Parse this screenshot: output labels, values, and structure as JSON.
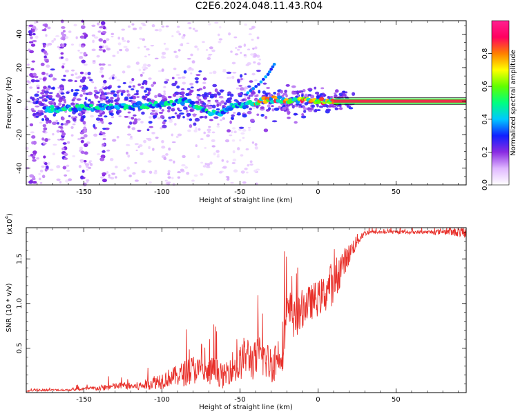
{
  "figure_title": "C2E6.2024.048.11.43.R04",
  "colors": {
    "snr_line": "#e8302a",
    "frame": "#000000",
    "signal_band": "#e8304a"
  },
  "chart_data": [
    {
      "type": "heatmap",
      "title": "",
      "xlabel": "Height of straight line (km)",
      "ylabel": "Frequency (Hz)",
      "xlim": [
        -187,
        95
      ],
      "ylim": [
        -50,
        48
      ],
      "xticks": [
        -150,
        -100,
        -50,
        0,
        50
      ],
      "xtick_labels": [
        "-150",
        "-100",
        "-50",
        "0",
        "50"
      ],
      "yticks": [
        -40,
        -20,
        0,
        20,
        40
      ],
      "ytick_labels": [
        "-40",
        "-20",
        "0",
        "20",
        "40"
      ],
      "colorbar": {
        "label": "Normalized spectral amplitude",
        "range": [
          0,
          1
        ],
        "ticks": [
          0.0,
          0.2,
          0.4,
          0.6,
          0.8
        ],
        "tick_labels": [
          "0.0",
          "0.2",
          "0.4",
          "0.6",
          "0.8"
        ],
        "colormap": [
          "#ffffff",
          "#e0b8ff",
          "#8a2be2",
          "#1020ff",
          "#00c8ff",
          "#00ff80",
          "#60ff00",
          "#ffff00",
          "#ff8000",
          "#ff0060",
          "#ff2090"
        ]
      },
      "features": {
        "steady_tone": {
          "x_range": [
            10,
            95
          ],
          "frequency": 0,
          "amplitude": 0.85
        },
        "drifting_band": [
          {
            "x": -175,
            "f": -5
          },
          {
            "x": -150,
            "f": -4
          },
          {
            "x": -125,
            "f": -3
          },
          {
            "x": -100,
            "f": -2
          },
          {
            "x": -85,
            "f": 0
          },
          {
            "x": -75,
            "f": -5
          },
          {
            "x": -65,
            "f": -8
          },
          {
            "x": -55,
            "f": -3
          },
          {
            "x": -45,
            "f": -2
          },
          {
            "x": -35,
            "f": 1
          },
          {
            "x": -25,
            "f": 1
          },
          {
            "x": -10,
            "f": 0
          },
          {
            "x": 5,
            "f": 0
          },
          {
            "x": 15,
            "f": 0
          }
        ],
        "rising_branch": [
          {
            "x": -45,
            "f": 5
          },
          {
            "x": -38,
            "f": 10
          },
          {
            "x": -32,
            "f": 16
          },
          {
            "x": -28,
            "f": 22
          }
        ],
        "noise_columns_x": [
          -183,
          -175,
          -163,
          -150,
          -138
        ]
      }
    },
    {
      "type": "line",
      "title": "",
      "xlabel": "Height of straight line (km)",
      "ylabel": "SNR (10 * v/v)",
      "y_multiplier": "(x10",
      "y_multiplier_exp": "4",
      "y_multiplier_close": ")",
      "xlim": [
        -187,
        95
      ],
      "ylim": [
        0,
        1.85
      ],
      "xticks": [
        -150,
        -100,
        -50,
        0,
        50
      ],
      "xtick_labels": [
        "-150",
        "-100",
        "-50",
        "0",
        "50"
      ],
      "yticks": [
        0.5,
        1.0,
        1.5
      ],
      "ytick_labels": [
        "0.5",
        "1.0",
        "1.5"
      ],
      "series": [
        {
          "x": [
            -187,
            -170,
            -160,
            -150,
            -140,
            -135,
            -130,
            -125,
            -120,
            -115,
            -110,
            -105,
            -100,
            -95,
            -90,
            -85,
            -80,
            -78,
            -75,
            -72,
            -70,
            -68,
            -65,
            -62,
            -60,
            -58,
            -55,
            -52,
            -50,
            -48,
            -45,
            -42,
            -40,
            -38,
            -35,
            -32,
            -30,
            -28,
            -25,
            -22,
            -20,
            -18,
            -15,
            -12,
            -10,
            -8,
            -5,
            -2,
            0,
            3,
            5,
            8,
            10,
            12,
            15,
            18,
            20,
            22,
            25,
            28,
            30,
            35,
            40,
            45,
            50,
            55,
            60,
            65,
            70,
            75,
            80,
            85,
            90,
            95
          ],
          "base": [
            0.02,
            0.03,
            0.03,
            0.04,
            0.05,
            0.06,
            0.07,
            0.08,
            0.07,
            0.07,
            0.09,
            0.12,
            0.14,
            0.17,
            0.19,
            0.22,
            0.25,
            0.27,
            0.23,
            0.2,
            0.21,
            0.25,
            0.24,
            0.19,
            0.18,
            0.24,
            0.3,
            0.26,
            0.32,
            0.4,
            0.42,
            0.35,
            0.36,
            0.42,
            0.4,
            0.34,
            0.32,
            0.36,
            0.42,
            0.58,
            0.8,
            0.9,
            0.82,
            0.85,
            0.95,
            0.98,
            1.0,
            1.05,
            1.05,
            1.1,
            1.12,
            1.25,
            1.1,
            1.3,
            1.42,
            1.5,
            1.55,
            1.62,
            1.7,
            1.76,
            1.79,
            1.8,
            1.8,
            1.8,
            1.8,
            1.8,
            1.8,
            1.8,
            1.8,
            1.8,
            1.81,
            1.8,
            1.8,
            1.79
          ],
          "noise": [
            0.01,
            0.01,
            0.01,
            0.02,
            0.03,
            0.04,
            0.04,
            0.04,
            0.04,
            0.05,
            0.06,
            0.08,
            0.1,
            0.1,
            0.12,
            0.15,
            0.18,
            0.15,
            0.14,
            0.14,
            0.15,
            0.16,
            0.15,
            0.14,
            0.14,
            0.16,
            0.18,
            0.18,
            0.2,
            0.22,
            0.22,
            0.22,
            0.22,
            0.24,
            0.24,
            0.22,
            0.22,
            0.24,
            0.26,
            0.3,
            0.3,
            0.26,
            0.22,
            0.22,
            0.22,
            0.22,
            0.2,
            0.2,
            0.2,
            0.2,
            0.22,
            0.22,
            0.24,
            0.24,
            0.18,
            0.14,
            0.12,
            0.1,
            0.08,
            0.05,
            0.03,
            0.02,
            0.02,
            0.02,
            0.02,
            0.02,
            0.02,
            0.02,
            0.02,
            0.03,
            0.03,
            0.04,
            0.05,
            0.06
          ]
        }
      ]
    }
  ]
}
